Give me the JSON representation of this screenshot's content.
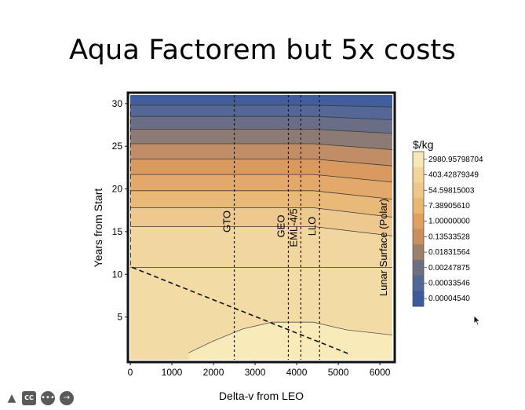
{
  "slide": {
    "title": "Aqua Factorem but 5x costs"
  },
  "chart_data": {
    "type": "contour",
    "title": "",
    "xlabel": "Delta-v from LEO",
    "ylabel": "Years from Start",
    "xlim": [
      0,
      6300
    ],
    "ylim": [
      0,
      31
    ],
    "xticks": [
      0,
      1000,
      2000,
      3000,
      4000,
      5000,
      6000
    ],
    "yticks": [
      5,
      10,
      15,
      20,
      25,
      30
    ],
    "legend": {
      "title": "$/kg",
      "placement": "right",
      "entries": [
        {
          "label": "2980.95798704",
          "color": "#f8e7b8"
        },
        {
          "label": "403.42879349",
          "color": "#f3d59a"
        },
        {
          "label": "54.59815003",
          "color": "#efc789"
        },
        {
          "label": "7.38905610",
          "color": "#e9b774"
        },
        {
          "label": "1.00000000",
          "color": "#dfa062"
        },
        {
          "label": "0.13533528",
          "color": "#c98f5c"
        },
        {
          "label": "0.01831564",
          "color": "#9e7f6c"
        },
        {
          "label": "0.00247875",
          "color": "#6f6f82"
        },
        {
          "label": "0.00033546",
          "color": "#536796"
        },
        {
          "label": "0.00004540",
          "color": "#3d5a9c"
        }
      ]
    },
    "contour_bands": [
      {
        "color": "#f1d69f",
        "lower": [
          [
            0,
            10.8
          ],
          [
            6300,
            10.8
          ]
        ]
      },
      {
        "color": "#eec98f",
        "lower": [
          [
            0,
            15.6
          ],
          [
            3000,
            15.6
          ],
          [
            4400,
            15.6
          ],
          [
            6300,
            14.5
          ]
        ]
      },
      {
        "color": "#e9b978",
        "lower": [
          [
            0,
            17.8
          ],
          [
            4400,
            17.8
          ],
          [
            6300,
            16.7
          ]
        ]
      },
      {
        "color": "#e3a96a",
        "lower": [
          [
            0,
            19.8
          ],
          [
            4400,
            19.8
          ],
          [
            6300,
            18.8
          ]
        ]
      },
      {
        "color": "#d9995f",
        "lower": [
          [
            0,
            21.7
          ],
          [
            4400,
            21.7
          ],
          [
            6300,
            20.8
          ]
        ]
      },
      {
        "color": "#c08d66",
        "lower": [
          [
            0,
            23.5
          ],
          [
            4400,
            23.5
          ],
          [
            6300,
            22.7
          ]
        ]
      },
      {
        "color": "#8c7a74",
        "lower": [
          [
            0,
            25.3
          ],
          [
            4400,
            25.3
          ],
          [
            6300,
            24.6
          ]
        ]
      },
      {
        "color": "#696d86",
        "lower": [
          [
            0,
            27.0
          ],
          [
            4400,
            27.0
          ],
          [
            6300,
            26.5
          ]
        ]
      },
      {
        "color": "#546797",
        "lower": [
          [
            0,
            28.5
          ],
          [
            4400,
            28.5
          ],
          [
            6300,
            28.1
          ]
        ]
      },
      {
        "color": "#425d9b",
        "lower": [
          [
            0,
            29.8
          ],
          [
            4400,
            29.8
          ],
          [
            6300,
            29.6
          ]
        ]
      }
    ],
    "bottom_region": {
      "color": "#f8eab9",
      "outline": [
        [
          1400,
          0.8
        ],
        [
          2000,
          2.2
        ],
        [
          2700,
          3.6
        ],
        [
          3400,
          4.4
        ],
        [
          4400,
          4.4
        ],
        [
          5200,
          3.5
        ],
        [
          6300,
          2.9
        ]
      ]
    },
    "reference_lines": [
      {
        "label": "GTO",
        "x": 2500
      },
      {
        "label": "GEO",
        "x": 3800
      },
      {
        "label": "EML-4/5",
        "x": 4100
      },
      {
        "label": "LLO",
        "x": 4550
      }
    ],
    "side_label": "Lunar Surface (Polar)",
    "dashed_boundary": [
      [
        0,
        30
      ],
      [
        0,
        10.9
      ],
      [
        5300,
        0.6
      ]
    ]
  },
  "controls": [
    {
      "name": "pointer-icon",
      "glyph": "▲"
    },
    {
      "name": "captions-icon",
      "glyph": "CC"
    },
    {
      "name": "more-icon",
      "glyph": "•••"
    },
    {
      "name": "next-arrow-icon",
      "glyph": "→"
    }
  ]
}
